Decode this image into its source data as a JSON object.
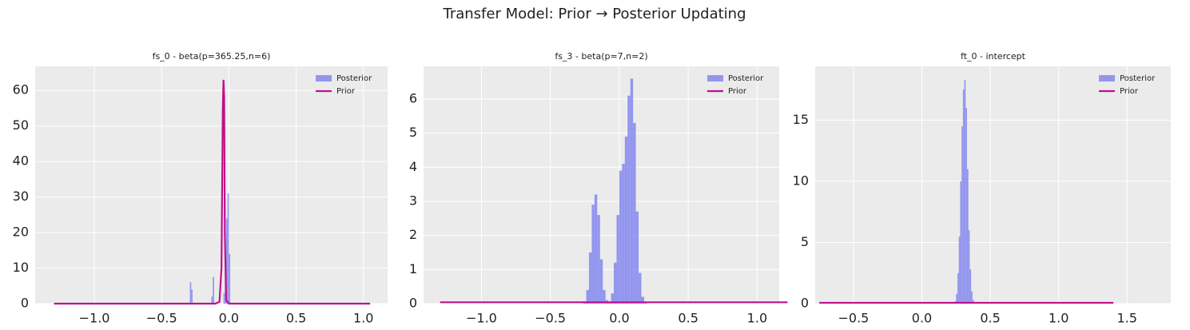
{
  "title": "Transfer Model: Prior → Posterior Updating",
  "chart_data": [
    {
      "type": "histogram",
      "title": "fs_0 - beta(p=365.25,n=6)",
      "grid": true,
      "legend": "upper right",
      "xlim": [
        -1.44,
        1.18
      ],
      "xticks": [
        {
          "value": -1.0,
          "label": "−1.0"
        },
        {
          "value": -0.5,
          "label": "−0.5"
        },
        {
          "value": 0,
          "label": "0.0"
        },
        0.5,
        {
          "value": 1.0,
          "label": "1.0"
        }
      ],
      "ylim": [
        0,
        66.8
      ],
      "yticks": [
        0,
        10,
        20,
        30,
        40,
        50,
        60
      ],
      "series": [
        {
          "name": "Posterior",
          "color": "#8487ee",
          "bins": [
            -0.3,
            -0.29,
            -0.28,
            -0.27,
            -0.26,
            -0.25,
            -0.24,
            -0.23,
            -0.22,
            -0.21,
            -0.2,
            -0.19,
            -0.18,
            -0.17,
            -0.16,
            -0.15,
            -0.14,
            -0.13,
            -0.12,
            -0.11,
            -0.1,
            -0.09,
            -0.08,
            -0.07,
            -0.06,
            -0.05,
            -0.04,
            -0.03,
            -0.02,
            -0.01,
            0.0,
            0.01
          ],
          "values": [
            0,
            6,
            4,
            0,
            0,
            0,
            0,
            0,
            0,
            0,
            0,
            0,
            0,
            0,
            0,
            0,
            0,
            2,
            7.5,
            0,
            0,
            0,
            0,
            0,
            0,
            0,
            3,
            12,
            24,
            31,
            14
          ]
        },
        {
          "name": "Prior",
          "color": "#c0108c",
          "x": [
            -1.3,
            -0.1,
            -0.07,
            -0.055,
            -0.045,
            -0.04,
            -0.035,
            -0.03,
            -0.02,
            0.0,
            1.05
          ],
          "values": [
            0,
            0,
            0.5,
            10,
            55,
            63,
            58,
            20,
            1,
            0,
            0
          ]
        }
      ]
    },
    {
      "type": "histogram",
      "title": "fs_3 - beta(p=7,n=2)",
      "grid": true,
      "legend": "upper right",
      "xlim": [
        -1.42,
        1.16
      ],
      "xticks": [
        {
          "value": -1.0,
          "label": "−1.0"
        },
        {
          "value": -0.5,
          "label": "−0.5"
        },
        {
          "value": 0,
          "label": "0.0"
        },
        0.5,
        {
          "value": 1.0,
          "label": "1.0"
        }
      ],
      "ylim": [
        0,
        6.96
      ],
      "yticks": [
        0,
        1,
        2,
        3,
        4,
        5,
        6
      ],
      "series": [
        {
          "name": "Posterior",
          "color": "#8487ee",
          "bins": [
            -0.26,
            -0.24,
            -0.22,
            -0.2,
            -0.18,
            -0.16,
            -0.14,
            -0.12,
            -0.1,
            -0.08,
            -0.06,
            -0.04,
            -0.02,
            0.0,
            0.02,
            0.04,
            0.06,
            0.08,
            0.1,
            0.12,
            0.14,
            0.16,
            0.18,
            0.2
          ],
          "values": [
            0.05,
            0.4,
            1.5,
            2.9,
            3.2,
            2.6,
            1.3,
            0.4,
            0.1,
            0.05,
            0.3,
            1.2,
            2.6,
            3.9,
            4.1,
            4.9,
            6.1,
            6.6,
            5.3,
            2.7,
            0.9,
            0.2,
            0.05
          ]
        },
        {
          "name": "Prior",
          "color": "#c0108c",
          "x": [
            -1.3,
            1.22
          ],
          "values": [
            0.04,
            0.04
          ]
        }
      ]
    },
    {
      "type": "histogram",
      "title": "ft_0 - intercept",
      "grid": true,
      "legend": "upper right",
      "xlim": [
        -0.78,
        1.82
      ],
      "xticks": [
        {
          "value": -0.5,
          "label": "−0.5"
        },
        {
          "value": 0,
          "label": "0.0"
        },
        0.5,
        {
          "value": 1.0,
          "label": "1.0"
        },
        1.5
      ],
      "ylim": [
        0,
        19.4
      ],
      "yticks": [
        0,
        5,
        10,
        15
      ],
      "series": [
        {
          "name": "Posterior",
          "color": "#8487ee",
          "bins": [
            0.24,
            0.25,
            0.26,
            0.27,
            0.28,
            0.29,
            0.3,
            0.31,
            0.32,
            0.33,
            0.34,
            0.35,
            0.36,
            0.37,
            0.38,
            0.39
          ],
          "values": [
            0.2,
            0.8,
            2.5,
            5.5,
            10,
            14.5,
            17.5,
            18.3,
            16,
            11,
            6,
            2.8,
            1,
            0.3,
            0.1
          ]
        },
        {
          "name": "Prior",
          "color": "#c0108c",
          "x": [
            -0.75,
            1.4
          ],
          "values": [
            0.07,
            0.07
          ]
        }
      ]
    }
  ]
}
